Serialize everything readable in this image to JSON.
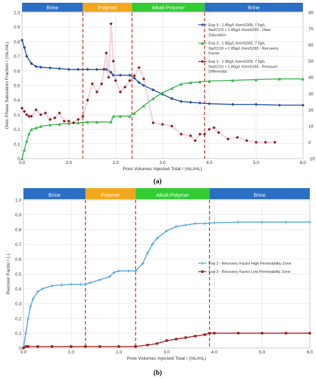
{
  "panel_a_caption": "(a)",
  "panel_b_caption": "(b)",
  "colors": {
    "brine": "#2b6fc4",
    "polymer": "#f2a81d",
    "alkali_polymer": "#33cc33",
    "phase_line": "#c0392b",
    "oleic": "#1f4e9c",
    "recovery": "#39b54a",
    "pressure": "#8b1a1a",
    "recovery_high": "#4aa3df",
    "recovery_low": "#a02020"
  },
  "chart_data": [
    {
      "type": "line",
      "phases": [
        {
          "label": "Brine",
          "from": 0.0,
          "to": 1.3,
          "color": "brine"
        },
        {
          "label": "Polymer",
          "from": 1.3,
          "to": 2.35,
          "color": "polymer"
        },
        {
          "label": "Alkali-Polymer",
          "from": 2.35,
          "to": 3.9,
          "color": "alkali_polymer"
        },
        {
          "label": "Brine",
          "from": 3.9,
          "to": 6.0,
          "color": "brine"
        }
      ],
      "xlabel": "Pore Volumes Injected Total / (mL/mL)",
      "ylabel": "Oleic Phase Saturation Fraction / (mL/mL)",
      "xlim": [
        0,
        6.0
      ],
      "ylim": [
        0,
        1.0
      ],
      "y2lim": [
        -10,
        80
      ],
      "xticks": [
        "0.0",
        "1.0",
        "2.0",
        "3.0",
        "4.0",
        "5.0",
        "6.0"
      ],
      "yticks": [
        "0",
        "0.1",
        "0.2",
        "0.3",
        "0.4",
        "0.5",
        "0.6",
        "0.7",
        "0.8",
        "0.9",
        "1.0"
      ],
      "y2ticks": [
        "-10",
        "0",
        "10",
        "20",
        "30",
        "40",
        "50",
        "60",
        "70",
        "80"
      ],
      "grid": true,
      "legend_position": "top-right",
      "series": [
        {
          "name": "Exp 3 - 1.85g/L KemS265; 7.5g/L Na2CO3 + 1.85g/L KemS265 - Oleic Saturation",
          "color": "oleic",
          "axis": "left",
          "marker": "diamond",
          "x": [
            0.0,
            0.05,
            0.1,
            0.2,
            0.3,
            0.4,
            0.6,
            0.8,
            1.0,
            1.2,
            1.4,
            1.6,
            1.8,
            1.9,
            1.95,
            2.1,
            2.3,
            2.4,
            2.5,
            2.6,
            2.8,
            3.0,
            3.2,
            3.4,
            3.6,
            3.8,
            4.0,
            4.5,
            5.0,
            5.5,
            6.0
          ],
          "y": [
            0.81,
            0.76,
            0.7,
            0.65,
            0.63,
            0.625,
            0.62,
            0.615,
            0.61,
            0.61,
            0.61,
            0.61,
            0.61,
            0.59,
            0.57,
            0.57,
            0.57,
            0.55,
            0.52,
            0.5,
            0.47,
            0.44,
            0.41,
            0.39,
            0.385,
            0.38,
            0.375,
            0.37,
            0.37,
            0.365,
            0.365
          ]
        },
        {
          "name": "Exp 3 - 1.85g/L KemS265; 7.5g/L Na2CO3 + 1.85g/L KemS265 - Recovery Factor",
          "color": "recovery",
          "axis": "left",
          "marker": "triangle",
          "x": [
            0.0,
            0.05,
            0.1,
            0.15,
            0.2,
            0.3,
            0.4,
            0.6,
            0.8,
            1.0,
            1.2,
            1.4,
            1.6,
            1.9,
            1.95,
            2.1,
            2.3,
            2.4,
            2.6,
            2.8,
            3.0,
            3.2,
            3.4,
            3.6,
            3.8,
            4.0,
            4.5,
            5.0,
            5.5,
            6.0
          ],
          "y": [
            0.0,
            0.06,
            0.12,
            0.17,
            0.2,
            0.21,
            0.22,
            0.23,
            0.235,
            0.24,
            0.245,
            0.25,
            0.25,
            0.25,
            0.29,
            0.29,
            0.29,
            0.31,
            0.36,
            0.41,
            0.45,
            0.48,
            0.51,
            0.52,
            0.525,
            0.53,
            0.535,
            0.54,
            0.545,
            0.545
          ]
        },
        {
          "name": "Exp 3 - 1.85g/L KemS265; 7.5g/L Na2CO3 + 1.85g/L KemS265 - Pressure Differential",
          "color": "pressure",
          "axis": "right",
          "marker": "diamond-dots",
          "x": [
            0.0,
            0.05,
            0.1,
            0.15,
            0.2,
            0.3,
            0.4,
            0.5,
            0.6,
            0.7,
            0.8,
            0.9,
            1.0,
            1.1,
            1.2,
            1.3,
            1.4,
            1.5,
            1.6,
            1.7,
            1.75,
            1.8,
            1.85,
            1.9,
            1.95,
            2.0,
            2.1,
            2.2,
            2.3,
            2.4,
            2.5,
            2.6,
            2.8,
            3.0,
            3.2,
            3.4,
            3.6,
            3.7,
            3.8,
            3.9,
            4.0,
            4.1,
            4.2,
            4.4,
            4.6,
            4.8,
            5.0,
            5.2,
            5.4
          ],
          "y": [
            21,
            19,
            17,
            16,
            16,
            20,
            17,
            18,
            14,
            15,
            18,
            13,
            13,
            12,
            14,
            16,
            26,
            36,
            31,
            36,
            45,
            55,
            40,
            73,
            50,
            38,
            31,
            34,
            38,
            41,
            46,
            39,
            12,
            11,
            10,
            5,
            4,
            1,
            5,
            5,
            8,
            9,
            6,
            2,
            3,
            1,
            0,
            0,
            0
          ]
        }
      ]
    },
    {
      "type": "line",
      "phases": [
        {
          "label": "Brine",
          "from": 0.0,
          "to": 1.3,
          "color": "brine"
        },
        {
          "label": "Polymer",
          "from": 1.3,
          "to": 2.35,
          "color": "polymer"
        },
        {
          "label": "Alkali-Polymer",
          "from": 2.35,
          "to": 3.9,
          "color": "alkali_polymer"
        },
        {
          "label": "Brine",
          "from": 3.9,
          "to": 6.0,
          "color": "brine"
        }
      ],
      "xlabel": "Pore Volumes Injected Total / (mL/mL)",
      "ylabel": "Recover Factor / (-)",
      "xlim": [
        0,
        6.0
      ],
      "ylim": [
        0,
        1.0
      ],
      "xticks": [
        "0.0",
        "1.0",
        "2.0",
        "3.0",
        "4.0",
        "5.0",
        "6.0"
      ],
      "yticks": [
        "0",
        "0.1",
        "0.2",
        "0.3",
        "0.4",
        "0.5",
        "0.6",
        "0.7",
        "0.8",
        "0.9",
        "1.0"
      ],
      "grid": true,
      "legend_position": "right-middle",
      "series": [
        {
          "name": "Exp 3 - Recovery Factor High Permeability Zone",
          "color": "recovery_high",
          "axis": "left",
          "marker": "plus",
          "x": [
            0.0,
            0.05,
            0.1,
            0.15,
            0.2,
            0.3,
            0.4,
            0.6,
            0.8,
            1.0,
            1.2,
            1.3,
            1.4,
            1.6,
            1.8,
            1.9,
            2.0,
            2.2,
            2.35,
            2.5,
            2.6,
            2.7,
            2.8,
            3.0,
            3.2,
            3.4,
            3.6,
            3.8,
            4.0,
            4.5,
            5.0,
            5.5,
            6.0
          ],
          "y": [
            0.0,
            0.1,
            0.2,
            0.28,
            0.33,
            0.38,
            0.4,
            0.42,
            0.425,
            0.43,
            0.43,
            0.43,
            0.44,
            0.46,
            0.48,
            0.51,
            0.52,
            0.52,
            0.52,
            0.57,
            0.64,
            0.7,
            0.74,
            0.79,
            0.82,
            0.83,
            0.84,
            0.84,
            0.845,
            0.85,
            0.85,
            0.85,
            0.85
          ]
        },
        {
          "name": "Exp 3 - Recovery Factor Low Permeability Zone",
          "color": "recovery_low",
          "axis": "left",
          "marker": "square",
          "x": [
            0.0,
            0.05,
            0.1,
            0.3,
            0.6,
            1.0,
            1.3,
            1.6,
            2.0,
            2.35,
            2.6,
            2.8,
            3.0,
            3.2,
            3.4,
            3.6,
            3.8,
            3.9,
            4.0,
            4.5,
            5.0,
            5.5,
            6.0
          ],
          "y": [
            0.0,
            0.01,
            0.01,
            0.01,
            0.01,
            0.01,
            0.01,
            0.01,
            0.01,
            0.01,
            0.02,
            0.03,
            0.05,
            0.06,
            0.07,
            0.08,
            0.09,
            0.1,
            0.1,
            0.1,
            0.1,
            0.1,
            0.1
          ]
        }
      ]
    }
  ]
}
